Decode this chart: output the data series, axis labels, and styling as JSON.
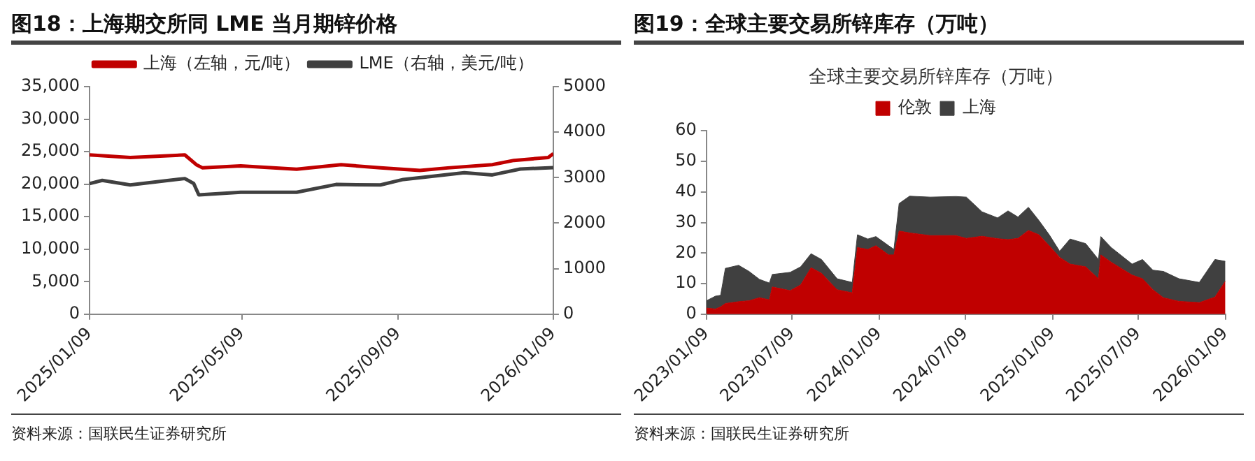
{
  "chart_data": [
    {
      "type": "line",
      "title": "图18：上海期交所同 LME 当月期锌价格",
      "legend": "top",
      "grid": false,
      "annotations": [
        "资料来源：国联民生证券研究所"
      ],
      "series": [
        {
          "name": "上海（左轴，元/吨）",
          "color": "#c00000",
          "x": [
            "2025-01-09",
            "2025-02-10",
            "2025-03-25",
            "2025-04-03",
            "2025-04-08",
            "2025-05-08",
            "2025-06-21",
            "2025-07-26",
            "2025-08-26",
            "2025-09-26",
            "2025-10-18",
            "2025-11-22",
            "2025-12-09",
            "2026-01-05",
            "2026-01-09"
          ],
          "values": [
            24500,
            24100,
            24500,
            23000,
            22500,
            22800,
            22300,
            23000,
            22500,
            22100,
            22500,
            23000,
            23650,
            24100,
            24700
          ]
        },
        {
          "name": "LME（右轴，美元/吨）",
          "color": "#404040",
          "axis": "y2",
          "x": [
            "2025-01-09",
            "2025-01-19",
            "2025-02-10",
            "2025-03-25",
            "2025-04-01",
            "2025-04-05",
            "2025-05-08",
            "2025-06-21",
            "2025-07-22",
            "2025-08-26",
            "2025-09-13",
            "2025-10-09",
            "2025-10-31",
            "2025-11-22",
            "2025-12-14",
            "2026-01-09"
          ],
          "values": [
            2870,
            2940,
            2840,
            2980,
            2870,
            2620,
            2680,
            2680,
            2850,
            2840,
            2960,
            3040,
            3110,
            3060,
            3190,
            3220
          ]
        }
      ],
      "xlim": [
        "2025-01-09",
        "2026-01-09"
      ],
      "xticks": [
        {
          "value": "2025-01-09",
          "label": "2025/01/09"
        },
        {
          "value": "2025-05-09",
          "label": "2025/05/09"
        },
        {
          "value": "2025-09-09",
          "label": "2025/09/09"
        },
        {
          "value": "2026-01-09",
          "label": "2026/01/09"
        }
      ],
      "ylim": [
        0,
        35000
      ],
      "yticks": [
        {
          "value": 0,
          "label": "0"
        },
        {
          "value": 5000,
          "label": "5,000"
        },
        {
          "value": 10000,
          "label": "10,000"
        },
        {
          "value": 15000,
          "label": "15,000"
        },
        {
          "value": 20000,
          "label": "20,000"
        },
        {
          "value": 25000,
          "label": "25,000"
        },
        {
          "value": 30000,
          "label": "30,000"
        },
        {
          "value": 35000,
          "label": "35,000"
        }
      ],
      "y2lim": [
        0,
        5000
      ],
      "y2ticks": [
        0,
        1000,
        2000,
        3000,
        4000,
        5000
      ]
    },
    {
      "type": "area",
      "title": "图19：全球主要交易所锌库存（万吨）",
      "subtitle": "全球主要交易所锌库存（万吨）",
      "legend": "top",
      "grid": false,
      "stacked": true,
      "annotations": [
        "资料来源：国联民生证券研究所"
      ],
      "x": [
        "2023-01-09",
        "2023-01-28",
        "2023-02-08",
        "2023-02-18",
        "2023-03-18",
        "2023-04-09",
        "2023-05-01",
        "2023-05-22",
        "2023-05-28",
        "2023-07-05",
        "2023-07-27",
        "2023-08-18",
        "2023-09-09",
        "2023-10-12",
        "2023-11-13",
        "2023-11-24",
        "2023-12-16",
        "2024-01-02",
        "2024-01-29",
        "2024-02-09",
        "2024-02-20",
        "2024-03-13",
        "2024-04-26",
        "2024-06-19",
        "2024-07-11",
        "2024-08-13",
        "2024-09-15",
        "2024-10-07",
        "2024-10-28",
        "2024-11-19",
        "2024-12-11",
        "2025-01-02",
        "2025-01-24",
        "2025-02-15",
        "2025-03-20",
        "2025-04-16",
        "2025-04-21",
        "2025-05-13",
        "2025-06-26",
        "2025-07-18",
        "2025-08-09",
        "2025-08-31",
        "2025-10-03",
        "2025-11-15",
        "2025-12-18",
        "2026-01-09"
      ],
      "series": [
        {
          "name": "伦敦",
          "color": "#c00000",
          "values": [
            2.0,
            1.7,
            2.4,
            3.5,
            4.1,
            4.4,
            5.4,
            4.7,
            8.9,
            7.7,
            9.6,
            15.2,
            13.4,
            8.0,
            7.0,
            21.8,
            21.2,
            22.4,
            19.4,
            19.4,
            27.2,
            26.6,
            25.7,
            25.7,
            24.8,
            25.5,
            24.7,
            24.4,
            24.8,
            27.4,
            26.0,
            22.4,
            18.6,
            16.4,
            15.5,
            11.6,
            19.4,
            17.0,
            12.8,
            11.6,
            8.0,
            5.4,
            4.2,
            3.8,
            5.6,
            10.8
          ]
        },
        {
          "name": "上海",
          "color": "#404040",
          "values": [
            2.4,
            4.2,
            3.8,
            11.5,
            11.9,
            9.6,
            6.0,
            5.5,
            4.1,
            6.0,
            5.9,
            4.6,
            4.5,
            3.6,
            3.4,
            4.2,
            3.4,
            3.0,
            3.0,
            1.8,
            9.0,
            12.0,
            12.6,
            12.8,
            13.5,
            8.0,
            6.8,
            9.4,
            7.0,
            7.6,
            4.7,
            3.6,
            2.0,
            8.2,
            7.6,
            6.3,
            6.0,
            4.8,
            3.6,
            6.3,
            6.4,
            8.6,
            7.4,
            6.6,
            12.3,
            6.5
          ]
        }
      ],
      "xlim": [
        "2023-01-09",
        "2026-01-09"
      ],
      "xticks": [
        {
          "value": "2023-01-09",
          "label": "2023/01/09"
        },
        {
          "value": "2023-07-09",
          "label": "2023/07/09"
        },
        {
          "value": "2024-01-09",
          "label": "2024/01/09"
        },
        {
          "value": "2024-07-09",
          "label": "2024/07/09"
        },
        {
          "value": "2025-01-09",
          "label": "2025/01/09"
        },
        {
          "value": "2025-07-09",
          "label": "2025/07/09"
        },
        {
          "value": "2026-01-09",
          "label": "2026/01/09"
        }
      ],
      "ylim": [
        0,
        60
      ],
      "yticks": [
        0,
        10,
        20,
        30,
        40,
        50,
        60
      ]
    }
  ]
}
